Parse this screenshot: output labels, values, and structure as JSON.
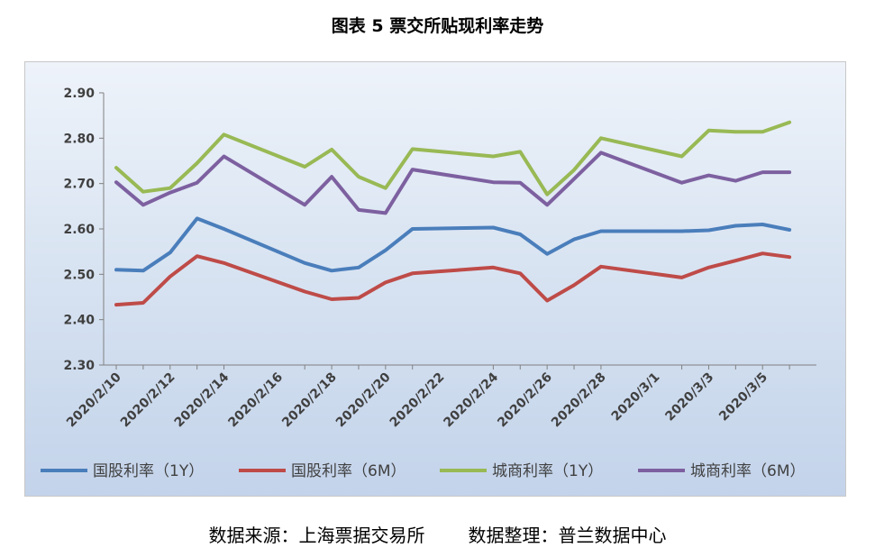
{
  "title": "图表 5  票交所贴现利率走势",
  "footer": {
    "source": "数据来源：上海票据交易所",
    "compiled": "数据整理：普兰数据中心"
  },
  "chart_data": {
    "type": "line",
    "title": "图表 5  票交所贴现利率走势",
    "xlabel": "",
    "ylabel": "",
    "ylim": [
      2.3,
      2.9
    ],
    "yticks": [
      "2.90",
      "2.80",
      "2.70",
      "2.60",
      "2.50",
      "2.40",
      "2.30"
    ],
    "xticks": [
      "2020/2/10",
      "2020/2/12",
      "2020/2/14",
      "2020/2/16",
      "2020/2/18",
      "2020/2/20",
      "2020/2/22",
      "2020/2/24",
      "2020/2/26",
      "2020/2/28",
      "2020/3/1",
      "2020/3/3",
      "2020/3/5"
    ],
    "x": [
      "2020/2/10",
      "2020/2/11",
      "2020/2/12",
      "2020/2/13",
      "2020/2/14",
      "2020/2/17",
      "2020/2/18",
      "2020/2/19",
      "2020/2/20",
      "2020/2/21",
      "2020/2/24",
      "2020/2/25",
      "2020/2/26",
      "2020/2/27",
      "2020/2/28",
      "2020/3/2",
      "2020/3/3",
      "2020/3/4",
      "2020/3/5",
      "2020/3/6"
    ],
    "series": [
      {
        "name": "国股利率（1Y）",
        "color": "#4a7ebb",
        "values": [
          2.51,
          2.508,
          2.548,
          2.623,
          2.6,
          2.525,
          2.508,
          2.515,
          2.553,
          2.6,
          2.603,
          2.588,
          2.545,
          2.577,
          2.595,
          2.595,
          2.597,
          2.607,
          2.61,
          2.598
        ]
      },
      {
        "name": "国股利率（6M）",
        "color": "#be4b48",
        "values": [
          2.433,
          2.437,
          2.495,
          2.54,
          2.525,
          2.462,
          2.445,
          2.448,
          2.482,
          2.502,
          2.515,
          2.502,
          2.442,
          2.476,
          2.517,
          2.493,
          2.515,
          2.53,
          2.546,
          2.538
        ]
      },
      {
        "name": "城商利率（1Y）",
        "color": "#98b954",
        "values": [
          2.735,
          2.682,
          2.69,
          2.745,
          2.808,
          2.737,
          2.775,
          2.715,
          2.69,
          2.776,
          2.76,
          2.77,
          2.676,
          2.73,
          2.8,
          2.76,
          2.817,
          2.814,
          2.814,
          2.835
        ]
      },
      {
        "name": "城商利率（6M）",
        "color": "#7d60a0",
        "values": [
          2.703,
          2.653,
          2.68,
          2.702,
          2.76,
          2.653,
          2.715,
          2.642,
          2.635,
          2.731,
          2.703,
          2.702,
          2.653,
          2.71,
          2.768,
          2.702,
          2.718,
          2.706,
          2.725,
          2.725
        ]
      }
    ],
    "grid": false,
    "legend": "bottom"
  }
}
